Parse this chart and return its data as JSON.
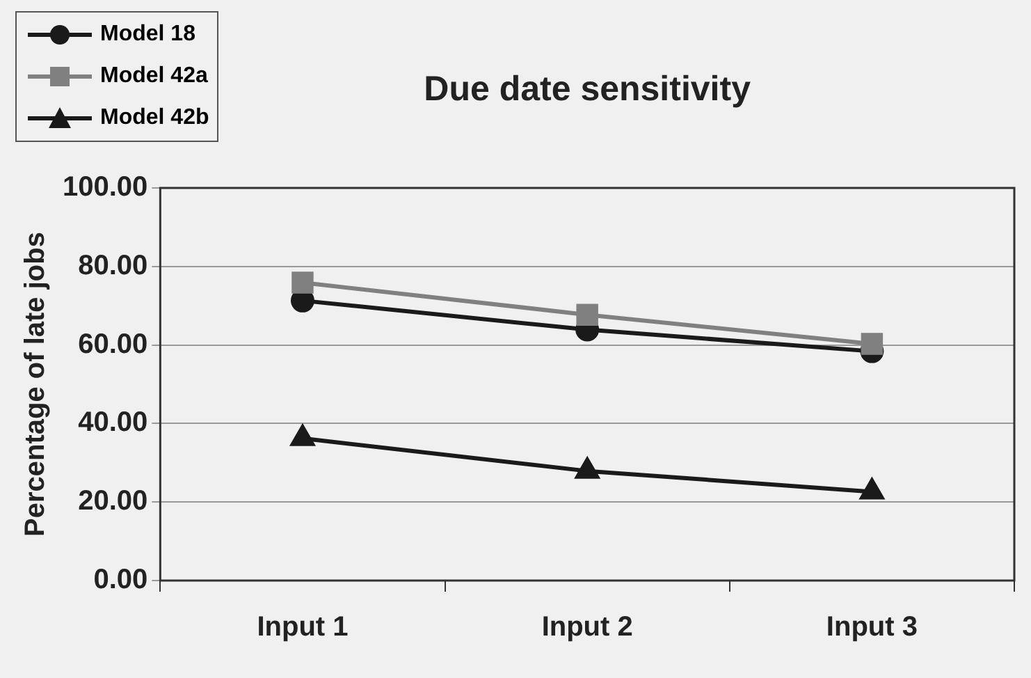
{
  "chart_data": {
    "type": "line",
    "title": "Due date sensitivity",
    "ylabel": "Percentage of late jobs",
    "categories": [
      "Input 1",
      "Input 2",
      "Input 3"
    ],
    "series": [
      {
        "name": "Model 18",
        "color": "#1a1a1a",
        "marker": "circle",
        "values": [
          71.3,
          63.9,
          58.4
        ]
      },
      {
        "name": "Model 42a",
        "color": "#808080",
        "marker": "square",
        "values": [
          75.9,
          67.7,
          60.3
        ]
      },
      {
        "name": "Model 42b",
        "color": "#1a1a1a",
        "marker": "triangle",
        "values": [
          36.2,
          27.9,
          22.6
        ]
      }
    ],
    "ylim": [
      0,
      100
    ],
    "yticks": [
      {
        "value": 0,
        "label": "0.00"
      },
      {
        "value": 20,
        "label": "20.00"
      },
      {
        "value": 40,
        "label": "40.00"
      },
      {
        "value": 60,
        "label": "60.00"
      },
      {
        "value": 80,
        "label": "80.00"
      },
      {
        "value": 100,
        "label": "100.00"
      }
    ],
    "grid": "y",
    "legend": "top left",
    "line_style": "solid"
  }
}
